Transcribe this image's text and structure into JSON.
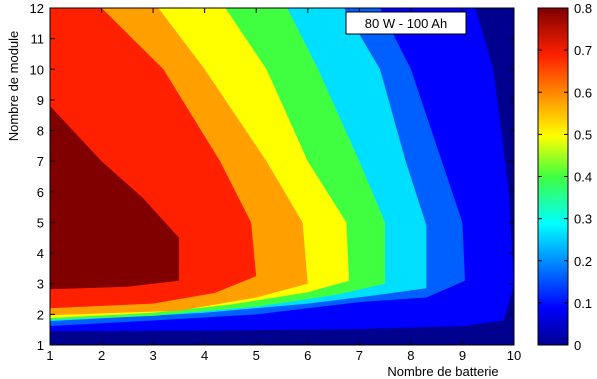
{
  "chart_data": {
    "type": "contour",
    "title": "",
    "annotation": "80 W - 100 Ah",
    "xlabel": "Nombre de batterie",
    "ylabel": "Nombre de module",
    "xlim": [
      1,
      10
    ],
    "ylim": [
      1,
      12
    ],
    "x_ticks": [
      1,
      2,
      3,
      4,
      5,
      6,
      7,
      8,
      9,
      10
    ],
    "y_ticks": [
      1,
      2,
      3,
      4,
      5,
      6,
      7,
      8,
      9,
      10,
      11,
      12
    ],
    "colorbar": {
      "range": [
        0,
        0.8
      ],
      "ticks": [
        0,
        0.1,
        0.2,
        0.3,
        0.4,
        0.5,
        0.6,
        0.7,
        0.8
      ],
      "colormap": "jet"
    },
    "levels": [
      0,
      0.1,
      0.2,
      0.3,
      0.4,
      0.5,
      0.6,
      0.7,
      0.8
    ],
    "level_colors": [
      "#00008f",
      "#0000ff",
      "#0060ff",
      "#00dfff",
      "#40ff40",
      "#ffff00",
      "#ff9f00",
      "#ff2000",
      "#800000",
      "#3a0000"
    ],
    "contours": [
      {
        "level": 0.1,
        "boundary": [
          [
            9.25,
            12
          ],
          [
            9.6,
            10
          ],
          [
            9.9,
            6
          ],
          [
            10.0,
            3.0
          ],
          [
            9.8,
            1.8
          ],
          [
            9.0,
            1.62
          ],
          [
            7.0,
            1.52
          ],
          [
            4.0,
            1.47
          ],
          [
            1.0,
            1.45
          ]
        ]
      },
      {
        "level": 0.2,
        "boundary": [
          [
            7.4,
            12
          ],
          [
            8.0,
            10
          ],
          [
            8.6,
            7
          ],
          [
            9.0,
            5
          ],
          [
            9.05,
            3.1
          ],
          [
            8.3,
            2.55
          ],
          [
            7.0,
            2.4
          ],
          [
            5.0,
            2.0
          ],
          [
            3.0,
            1.8
          ],
          [
            1.0,
            1.62
          ]
        ]
      },
      {
        "level": 0.3,
        "boundary": [
          [
            6.7,
            12
          ],
          [
            7.4,
            10
          ],
          [
            7.9,
            7.0
          ],
          [
            8.3,
            4.9
          ],
          [
            8.3,
            2.85
          ],
          [
            7.3,
            2.62
          ],
          [
            6.0,
            2.35
          ],
          [
            4.0,
            2.05
          ],
          [
            1.0,
            1.78
          ]
        ]
      },
      {
        "level": 0.4,
        "boundary": [
          [
            5.6,
            12
          ],
          [
            6.2,
            10
          ],
          [
            7.0,
            7.0
          ],
          [
            7.5,
            5
          ],
          [
            7.5,
            3.0
          ],
          [
            6.6,
            2.65
          ],
          [
            5.0,
            2.25
          ],
          [
            3.0,
            1.95
          ],
          [
            1.0,
            1.82
          ]
        ]
      },
      {
        "level": 0.5,
        "boundary": [
          [
            4.4,
            12
          ],
          [
            5.2,
            10
          ],
          [
            6.0,
            7.0
          ],
          [
            6.75,
            5
          ],
          [
            6.8,
            3.1
          ],
          [
            6.0,
            2.72
          ],
          [
            4.5,
            2.32
          ],
          [
            3.0,
            2.05
          ],
          [
            1.0,
            1.88
          ]
        ]
      },
      {
        "level": 0.6,
        "boundary": [
          [
            3.1,
            12
          ],
          [
            4.0,
            10.0
          ],
          [
            5.2,
            7
          ],
          [
            5.9,
            5
          ],
          [
            6.0,
            3.0
          ],
          [
            5.0,
            2.55
          ],
          [
            3.5,
            2.12
          ],
          [
            1.0,
            1.97
          ]
        ]
      },
      {
        "level": 0.7,
        "boundary": [
          [
            2.0,
            12
          ],
          [
            3.2,
            10
          ],
          [
            4.3,
            7.0
          ],
          [
            4.9,
            5
          ],
          [
            5.0,
            3.25
          ],
          [
            4.2,
            2.7
          ],
          [
            3.0,
            2.35
          ],
          [
            1.0,
            2.2
          ]
        ]
      },
      {
        "level": 0.75,
        "boundary": [
          [
            1.0,
            8.8
          ],
          [
            2.0,
            7.0
          ],
          [
            2.8,
            5.8
          ],
          [
            3.5,
            4.5
          ],
          [
            3.5,
            3.1
          ],
          [
            2.5,
            2.9
          ],
          [
            1.0,
            2.82
          ]
        ]
      }
    ]
  }
}
